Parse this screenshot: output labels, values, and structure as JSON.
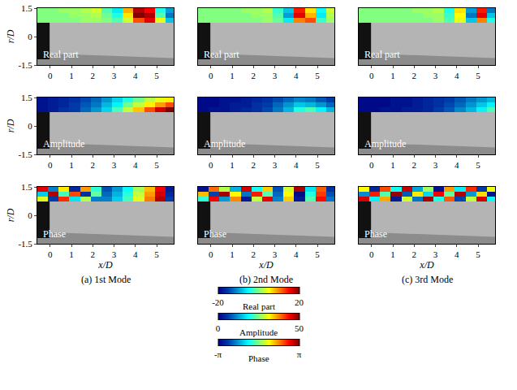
{
  "chart_data": [
    {
      "type": "heatmap",
      "title": "Real part",
      "ylabel": "r/D",
      "xlim": [
        -0.6,
        5.8
      ],
      "ylim": [
        -1.5,
        1.5
      ],
      "xticks": [
        0,
        1,
        2,
        3,
        4,
        5
      ],
      "yticks": [
        -1.5,
        0,
        1.5
      ],
      "x": [
        -0.35,
        0.15,
        0.65,
        1.15,
        1.65,
        2.15,
        2.65,
        3.15,
        3.65,
        4.15,
        4.65,
        5.15,
        5.65
      ],
      "y": [
        0.875,
        1.125,
        1.375
      ],
      "z": [
        [
          0,
          0,
          0,
          0,
          1,
          1,
          0,
          -2,
          3,
          12,
          16,
          4,
          -8
        ],
        [
          0,
          0,
          0,
          1,
          1,
          2,
          -1,
          -4,
          6,
          20,
          18,
          -2,
          -12
        ],
        [
          0,
          0,
          1,
          1,
          2,
          3,
          -2,
          -6,
          8,
          18,
          15,
          -4,
          -10
        ]
      ]
    },
    {
      "type": "heatmap",
      "title": "Real part",
      "xlim": [
        -0.6,
        5.8
      ],
      "ylim": [
        -1.5,
        1.5
      ],
      "xticks": [
        0,
        1,
        2,
        3,
        4,
        5
      ],
      "x": [
        -0.35,
        0.15,
        0.65,
        1.15,
        1.65,
        2.15,
        2.65,
        3.15,
        3.65,
        4.15,
        4.65,
        5.15,
        5.65
      ],
      "y": [
        0.875,
        1.125,
        1.375
      ],
      "z": [
        [
          0,
          0,
          0,
          0,
          0,
          0,
          1,
          -1,
          -6,
          10,
          12,
          -3,
          1
        ],
        [
          0,
          0,
          0,
          0,
          0,
          1,
          1,
          -2,
          -10,
          16,
          8,
          -6,
          2
        ],
        [
          0,
          0,
          0,
          0,
          1,
          1,
          2,
          -3,
          -8,
          14,
          6,
          -5,
          3
        ]
      ]
    },
    {
      "type": "heatmap",
      "title": "Real part",
      "xlim": [
        -0.6,
        5.8
      ],
      "ylim": [
        -1.5,
        1.5
      ],
      "xticks": [
        0,
        1,
        2,
        3,
        4,
        5
      ],
      "x": [
        -0.35,
        0.15,
        0.65,
        1.15,
        1.65,
        2.15,
        2.65,
        3.15,
        3.65,
        4.15,
        4.65,
        5.15,
        5.65
      ],
      "y": [
        0.875,
        1.125,
        1.375
      ],
      "z": [
        [
          0,
          0,
          0,
          0,
          0,
          0,
          0,
          1,
          -2,
          4,
          -8,
          10,
          -4
        ],
        [
          0,
          0,
          0,
          0,
          0,
          0,
          1,
          1,
          -3,
          5,
          -12,
          16,
          -8
        ],
        [
          0,
          0,
          0,
          0,
          0,
          1,
          1,
          2,
          -4,
          6,
          -10,
          14,
          -12
        ]
      ]
    },
    {
      "type": "heatmap",
      "title": "Amplitude",
      "ylabel": "r/D",
      "xlim": [
        -0.6,
        5.8
      ],
      "ylim": [
        -1.5,
        1.5
      ],
      "xticks": [
        0,
        1,
        2,
        3,
        4,
        5
      ],
      "yticks": [
        -1.5,
        0,
        1.5
      ],
      "x": [
        -0.35,
        0.15,
        0.65,
        1.15,
        1.65,
        2.15,
        2.65,
        3.15,
        3.65,
        4.15,
        4.65,
        5.15,
        5.65
      ],
      "y": [
        0.875,
        1.125,
        1.375
      ],
      "z": [
        [
          2,
          3,
          5,
          6,
          9,
          12,
          16,
          22,
          28,
          34,
          40,
          46,
          50
        ],
        [
          2,
          3,
          4,
          6,
          8,
          10,
          14,
          18,
          24,
          28,
          32,
          36,
          40
        ],
        [
          2,
          3,
          4,
          5,
          7,
          9,
          12,
          16,
          20,
          24,
          28,
          30,
          32
        ]
      ]
    },
    {
      "type": "heatmap",
      "title": "Amplitude",
      "xlim": [
        -0.6,
        5.8
      ],
      "ylim": [
        -1.5,
        1.5
      ],
      "xticks": [
        0,
        1,
        2,
        3,
        4,
        5
      ],
      "x": [
        -0.35,
        0.15,
        0.65,
        1.15,
        1.65,
        2.15,
        2.65,
        3.15,
        3.65,
        4.15,
        4.65,
        5.15,
        5.65
      ],
      "y": [
        0.875,
        1.125,
        1.375
      ],
      "z": [
        [
          1,
          2,
          2,
          3,
          4,
          5,
          7,
          10,
          14,
          20,
          22,
          18,
          14
        ],
        [
          1,
          1,
          2,
          3,
          3,
          5,
          6,
          9,
          12,
          15,
          14,
          12,
          9
        ],
        [
          1,
          1,
          2,
          2,
          3,
          4,
          5,
          7,
          9,
          11,
          10,
          8,
          6
        ]
      ]
    },
    {
      "type": "heatmap",
      "title": "Amplitude",
      "xlim": [
        -0.6,
        5.8
      ],
      "ylim": [
        -1.5,
        1.5
      ],
      "xticks": [
        0,
        1,
        2,
        3,
        4,
        5
      ],
      "x": [
        -0.35,
        0.15,
        0.65,
        1.15,
        1.65,
        2.15,
        2.65,
        3.15,
        3.65,
        4.15,
        4.65,
        5.15,
        5.65
      ],
      "y": [
        0.875,
        1.125,
        1.375
      ],
      "z": [
        [
          1,
          1,
          2,
          2,
          3,
          3,
          4,
          6,
          8,
          11,
          14,
          18,
          22
        ],
        [
          1,
          1,
          1,
          2,
          2,
          3,
          4,
          5,
          7,
          9,
          12,
          15,
          18
        ],
        [
          1,
          1,
          1,
          2,
          2,
          3,
          4,
          5,
          6,
          8,
          10,
          12,
          14
        ]
      ]
    },
    {
      "type": "heatmap",
      "title": "Phase",
      "ylabel": "r/D",
      "xlabel": "x/D",
      "caption": "(a) 1st Mode",
      "xlim": [
        -0.6,
        5.8
      ],
      "ylim": [
        -1.5,
        1.5
      ],
      "xticks": [
        0,
        1,
        2,
        3,
        4,
        5
      ],
      "yticks": [
        -1.5,
        0,
        1.5
      ],
      "x": [
        -0.35,
        0.15,
        0.65,
        1.15,
        1.65,
        2.15,
        2.65,
        3.15,
        3.65,
        4.15,
        4.65,
        5.15,
        5.65
      ],
      "y": [
        0.875,
        1.125,
        1.375
      ],
      "z": [
        [
          0.6,
          -2.4,
          2.1,
          -1.0,
          0.3,
          -1.8,
          -1.8,
          -1.2,
          -0.4,
          0.6,
          1.6,
          2.8,
          -2.4
        ],
        [
          -1.2,
          2.8,
          -0.4,
          1.9,
          -2.5,
          -0.2,
          -2.0,
          -1.4,
          -0.6,
          0.4,
          1.4,
          2.6,
          -2.6
        ],
        [
          2.5,
          -1.8,
          0.9,
          -2.6,
          1.4,
          -0.5,
          -2.2,
          -1.6,
          -0.8,
          0.2,
          1.2,
          2.4,
          -2.8
        ]
      ]
    },
    {
      "type": "heatmap",
      "title": "Phase",
      "xlabel": "x/D",
      "caption": "(b) 2nd Mode",
      "xlim": [
        -0.6,
        5.8
      ],
      "ylim": [
        -1.5,
        1.5
      ],
      "xticks": [
        0,
        1,
        2,
        3,
        4,
        5
      ],
      "x": [
        -0.35,
        0.15,
        0.65,
        1.15,
        1.65,
        2.15,
        2.65,
        3.15,
        3.65,
        4.15,
        4.65,
        5.15,
        5.65
      ],
      "y": [
        0.875,
        1.125,
        1.375
      ],
      "z": [
        [
          -0.5,
          2.4,
          -1.6,
          1.5,
          -2.8,
          0.4,
          2.5,
          -1.8,
          1.1,
          -2.8,
          -0.3,
          2.3,
          -1.9
        ],
        [
          1.2,
          -2.3,
          2.9,
          0.8,
          -1.9,
          2.2,
          -0.3,
          -2.0,
          0.8,
          -3.0,
          -0.6,
          2.0,
          -2.2
        ],
        [
          -2.9,
          1.7,
          0.3,
          -1.4,
          2.6,
          -0.7,
          1.1,
          -2.2,
          0.5,
          2.9,
          -1.0,
          1.8,
          -2.5
        ]
      ]
    },
    {
      "type": "heatmap",
      "title": "Phase",
      "xlabel": "x/D",
      "caption": "(c) 3rd Mode",
      "xlim": [
        -0.6,
        5.8
      ],
      "ylim": [
        -1.5,
        1.5
      ],
      "xticks": [
        0,
        1,
        2,
        3,
        4,
        5
      ],
      "x": [
        -0.35,
        0.15,
        0.65,
        1.15,
        1.65,
        2.15,
        2.65,
        3.15,
        3.65,
        4.15,
        4.65,
        5.15,
        5.65
      ],
      "y": [
        0.875,
        1.125,
        1.375
      ],
      "z": [
        [
          2.6,
          -0.9,
          1.3,
          -2.8,
          0.5,
          -1.9,
          2.9,
          -0.6,
          1.8,
          -2.3,
          0.4,
          2.6,
          -0.8
        ],
        [
          -1.7,
          2.2,
          -0.3,
          3.0,
          -2.1,
          0.9,
          -1.1,
          2.4,
          -0.2,
          2.8,
          -1.6,
          1.0,
          -2.9
        ],
        [
          0.8,
          -2.6,
          1.9,
          -0.7,
          2.7,
          -1.5,
          0.2,
          -2.9,
          1.4,
          -0.9,
          2.1,
          -2.4,
          0.7
        ]
      ]
    }
  ],
  "colorbars": [
    {
      "label": "Real part",
      "color": "jet",
      "lim": [
        -20,
        20
      ],
      "ticks": [
        -20,
        20
      ]
    },
    {
      "label": "Amplitude",
      "color": "jet",
      "lim": [
        0,
        50
      ],
      "ticks": [
        0,
        50
      ]
    },
    {
      "label": "Phase",
      "color": "jet",
      "lim": [
        -3.1416,
        3.1416
      ],
      "ticks": [
        {
          "value": -3.1416,
          "label": "-π"
        },
        {
          "value": 3.1416,
          "label": "π"
        }
      ]
    }
  ]
}
